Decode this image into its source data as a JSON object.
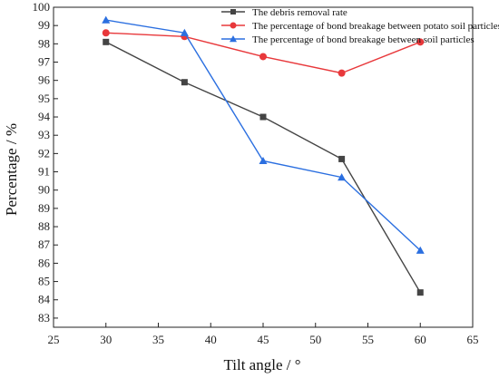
{
  "chart_data": {
    "type": "line",
    "title": "",
    "xlabel": "Tilt angle / °",
    "ylabel": "Percentage / %",
    "xlim": [
      25,
      65
    ],
    "ylim": [
      82.5,
      100
    ],
    "x_ticks": [
      25,
      30,
      35,
      40,
      45,
      50,
      55,
      60,
      65
    ],
    "y_ticks": [
      83,
      84,
      85,
      86,
      87,
      88,
      89,
      90,
      91,
      92,
      93,
      94,
      95,
      96,
      97,
      98,
      99,
      100
    ],
    "grid": false,
    "legend_position": "top-right",
    "series": [
      {
        "name": "The debris removal rate",
        "marker": "square",
        "color": "#444444",
        "x": [
          30,
          37.5,
          45,
          52.5,
          60
        ],
        "values": [
          98.1,
          95.9,
          94.0,
          91.7,
          84.4
        ]
      },
      {
        "name": "The percentage of bond breakage between potato soil particles",
        "marker": "circle",
        "color": "#e8383b",
        "x": [
          30,
          37.5,
          45,
          52.5,
          60
        ],
        "values": [
          98.6,
          98.4,
          97.3,
          96.4,
          98.1
        ]
      },
      {
        "name": "The percentage of bond breakage between soil particles",
        "marker": "triangle",
        "color": "#2b6fe0",
        "x": [
          30,
          37.5,
          45,
          52.5,
          60
        ],
        "values": [
          99.3,
          98.6,
          91.6,
          90.7,
          86.7
        ]
      }
    ]
  }
}
